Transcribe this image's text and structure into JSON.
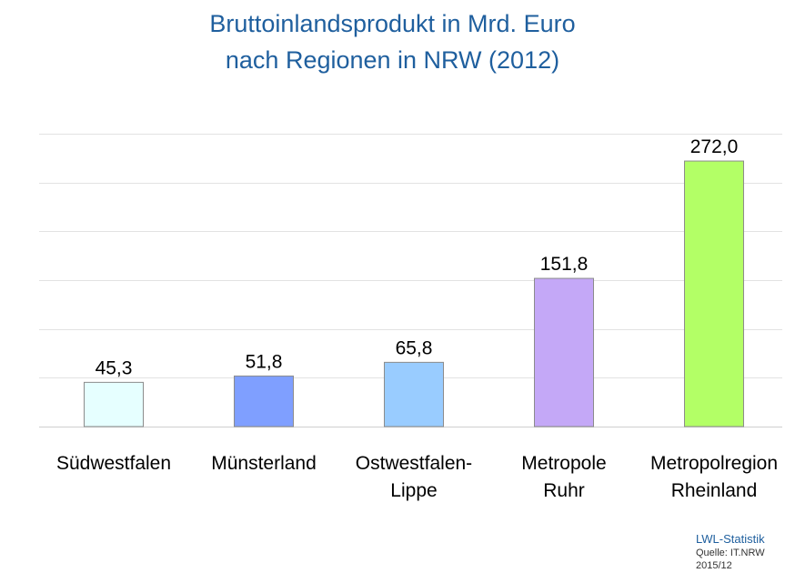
{
  "title_lines": [
    "Bruttoinlandsprodukt in Mrd. Euro",
    "nach Regionen in NRW (2012)"
  ],
  "chart_data": {
    "type": "bar",
    "categories": [
      [
        "Südwestfalen"
      ],
      [
        "Münsterland"
      ],
      [
        "Ostwestfalen-",
        "Lippe"
      ],
      [
        "Metropole",
        "Ruhr"
      ],
      [
        "Metropolregion",
        "Rheinland"
      ]
    ],
    "values": [
      45.3,
      51.8,
      65.8,
      151.8,
      272.0
    ],
    "value_labels": [
      "45,3",
      "51,8",
      "65,8",
      "151,8",
      "272,0"
    ],
    "bar_colors": [
      "#e6ffff",
      "#7f9fff",
      "#99ccff",
      "#c4a8f7",
      "#b3ff66"
    ],
    "bar_stroke": "#8c8c8c",
    "ylim": [
      0,
      300
    ],
    "grid_step": 50,
    "grid": true,
    "xlabel": "",
    "ylabel": ""
  },
  "footer": {
    "org": "LWL-Statistik",
    "source": "Quelle:  IT.NRW",
    "date": "2015/12"
  }
}
